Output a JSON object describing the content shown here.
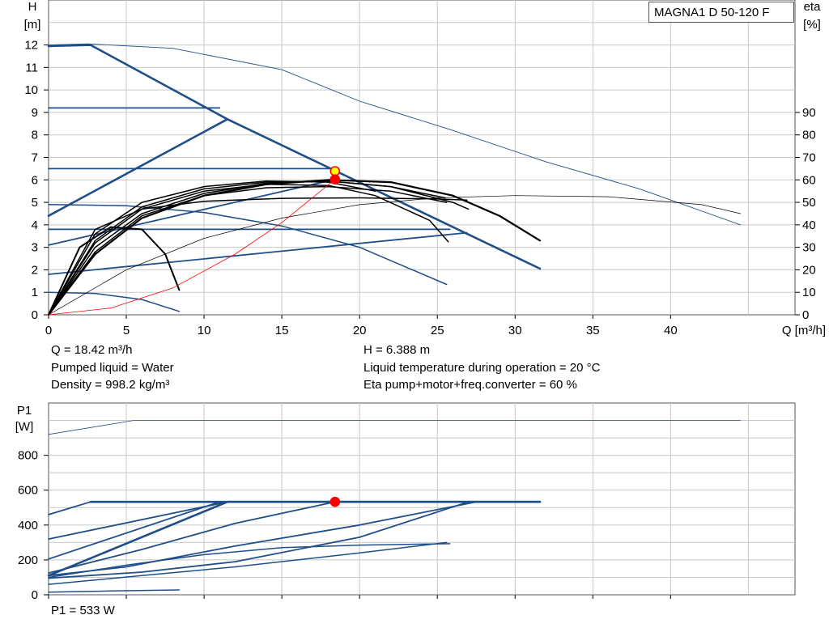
{
  "model": "MAGNA1 D 50-120 F",
  "info": {
    "q": "Q = 18.42 m³/h",
    "h": "H = 6.388 m",
    "liquid": "Pumped liquid = Water",
    "temp": "Liquid temperature during operation = 20 °C",
    "density": "Density = 998.2 kg/m³",
    "eta": "Eta pump+motor+freq.converter = 60 %",
    "p1": "P1 = 533 W"
  },
  "colors": {
    "curve": "#1f4e89",
    "efficiency": "#000000",
    "system": "#ff0000",
    "grid": "#c8c8c8",
    "marker": "#ff0000",
    "marker_alt": "#ffff00"
  },
  "chart_data": [
    {
      "type": "line",
      "title": "",
      "ylabel_top": "H",
      "ylabel_unit": "[m]",
      "y2label_top": "eta",
      "y2label_unit": "[%]",
      "xlabel": "Q [m³/h]",
      "xlim": [
        0,
        48
      ],
      "ylim": [
        0,
        14
      ],
      "y2lim": [
        0,
        140
      ],
      "xticks": [
        0,
        5,
        10,
        15,
        20,
        25,
        30,
        35,
        40
      ],
      "yticks": [
        0,
        1,
        2,
        3,
        4,
        5,
        6,
        7,
        8,
        9,
        10,
        11,
        12
      ],
      "y2ticks": [
        0,
        10,
        20,
        30,
        40,
        50,
        60,
        70,
        80,
        90
      ],
      "grid": true,
      "series": [
        {
          "role": "max",
          "axis": "y",
          "points": [
            [
              0,
              11.95
            ],
            [
              2.7,
              12
            ],
            [
              11.5,
              8.7
            ],
            [
              31.6,
              2.05
            ]
          ],
          "width": 2.6
        },
        {
          "role": "prop-high",
          "axis": "y",
          "points": [
            [
              0,
              4.4
            ],
            [
              11.5,
              8.7
            ]
          ],
          "width": 2.6
        },
        {
          "role": "const-9",
          "axis": "y",
          "points": [
            [
              0,
              9.2
            ],
            [
              11,
              9.2
            ]
          ],
          "width": 1.8
        },
        {
          "role": "const-6.5",
          "axis": "y",
          "points": [
            [
              0,
              6.5
            ],
            [
              18.4,
              6.5
            ]
          ],
          "width": 1.8
        },
        {
          "role": "const-3.8",
          "axis": "y",
          "points": [
            [
              0,
              3.8
            ],
            [
              25.8,
              3.8
            ]
          ],
          "width": 1.8
        },
        {
          "role": "prop-mid",
          "axis": "y",
          "points": [
            [
              0,
              3.1
            ],
            [
              18.4,
              6.02
            ]
          ],
          "width": 1.8
        },
        {
          "role": "prop-low",
          "axis": "y",
          "points": [
            [
              0,
              1.8
            ],
            [
              26.9,
              3.65
            ]
          ],
          "width": 1.8
        },
        {
          "role": "auto-low",
          "axis": "y",
          "points": [
            [
              0,
              4.9
            ],
            [
              5,
              4.85
            ],
            [
              10,
              4.55
            ],
            [
              15,
              3.95
            ],
            [
              20,
              3.0
            ],
            [
              25.6,
              1.35
            ]
          ],
          "width": 1.5
        },
        {
          "role": "min",
          "axis": "y",
          "points": [
            [
              0,
              1.0
            ],
            [
              3,
              0.95
            ],
            [
              6,
              0.68
            ],
            [
              8.4,
              0.15
            ]
          ],
          "width": 1.5
        },
        {
          "role": "eta-main",
          "axis": "y2",
          "points": [
            [
              0,
              120
            ],
            [
              2.5,
              120.5
            ],
            [
              8,
              118.5
            ],
            [
              15,
              109
            ],
            [
              20,
              95
            ],
            [
              26,
              82
            ],
            [
              32,
              68
            ],
            [
              38,
              56
            ],
            [
              44.5,
              40
            ]
          ],
          "width": 0.9
        },
        {
          "role": "eta-curve",
          "axis": "y2",
          "points": [
            [
              0,
              0
            ],
            [
              5,
              20
            ],
            [
              10,
              34
            ],
            [
              15,
              43
            ],
            [
              20,
              49
            ],
            [
              25,
              52
            ],
            [
              30,
              53
            ],
            [
              36,
              52.5
            ],
            [
              42,
              49
            ],
            [
              44.5,
              45
            ]
          ],
          "width": 0.7,
          "color": "efficiency"
        },
        {
          "role": "eta-a",
          "axis": "y2",
          "points": [
            [
              0,
              0
            ],
            [
              3,
              27
            ],
            [
              6,
              43
            ],
            [
              10,
              53
            ],
            [
              14,
              58
            ],
            [
              18,
              60
            ],
            [
              22,
              59
            ],
            [
              26,
              53
            ],
            [
              29,
              44
            ],
            [
              31.6,
              33
            ]
          ],
          "width": 2.2,
          "color": "efficiency"
        },
        {
          "role": "eta-b",
          "axis": "y2",
          "points": [
            [
              0,
              0
            ],
            [
              3,
              30
            ],
            [
              6,
              45
            ],
            [
              10,
              54
            ],
            [
              14,
              58.5
            ],
            [
              18,
              59.5
            ],
            [
              22,
              57
            ],
            [
              26,
              50
            ],
            [
              27,
              47
            ]
          ],
          "width": 1.5,
          "color": "efficiency"
        },
        {
          "role": "eta-c",
          "axis": "y2",
          "points": [
            [
              0,
              0
            ],
            [
              3,
              32
            ],
            [
              6,
              47
            ],
            [
              10,
              55
            ],
            [
              14,
              58
            ],
            [
              18,
              57.5
            ],
            [
              21,
              53
            ],
            [
              24.5,
              42
            ],
            [
              25.7,
              32.5
            ]
          ],
          "width": 1.5,
          "color": "efficiency"
        },
        {
          "role": "eta-d",
          "axis": "y2",
          "points": [
            [
              0,
              0
            ],
            [
              3,
              28
            ],
            [
              6,
              44
            ],
            [
              10,
              53
            ],
            [
              14,
              56.5
            ],
            [
              18,
              57
            ],
            [
              22,
              55
            ],
            [
              25.6,
              50
            ]
          ],
          "width": 1.5,
          "color": "efficiency"
        },
        {
          "role": "eta-e",
          "axis": "y2",
          "points": [
            [
              0,
              0
            ],
            [
              3,
              33
            ],
            [
              6,
              48
            ],
            [
              10,
              56
            ],
            [
              14,
              59
            ],
            [
              18,
              59.5
            ],
            [
              22,
              57
            ],
            [
              25.5,
              52
            ]
          ],
          "width": 1.5,
          "color": "efficiency"
        },
        {
          "role": "eta-f",
          "axis": "y2",
          "points": [
            [
              0,
              0
            ],
            [
              3,
              36
            ],
            [
              6,
              50
            ],
            [
              10,
              57
            ],
            [
              14,
              59.5
            ],
            [
              18,
              59
            ],
            [
              21,
              55
            ]
          ],
          "width": 1.5,
          "color": "efficiency"
        },
        {
          "role": "eta-flat",
          "axis": "y2",
          "points": [
            [
              0,
              0
            ],
            [
              3,
              38
            ],
            [
              6,
              47
            ],
            [
              10,
              50.5
            ],
            [
              15,
              51.8
            ],
            [
              20,
              52
            ],
            [
              25,
              51.5
            ],
            [
              26.9,
              51
            ]
          ],
          "width": 1.5,
          "color": "efficiency"
        },
        {
          "role": "eta-small",
          "axis": "y2",
          "points": [
            [
              0,
              0
            ],
            [
              2,
              30
            ],
            [
              4,
              39
            ],
            [
              6,
              38
            ],
            [
              7.5,
              27
            ],
            [
              8.4,
              11
            ]
          ],
          "width": 2.0,
          "color": "efficiency"
        },
        {
          "role": "system",
          "axis": "y",
          "points": [
            [
              0,
              0
            ],
            [
              4,
              0.3
            ],
            [
              8,
              1.2
            ],
            [
              12,
              2.7
            ],
            [
              15,
              4.1
            ],
            [
              18.42,
              6.02
            ]
          ],
          "width": 0.8,
          "color": "system"
        }
      ],
      "markers": [
        {
          "x": 18.42,
          "y": 6.388,
          "fill": "marker_alt",
          "stroke": "marker"
        },
        {
          "x": 18.42,
          "y": 6.02,
          "fill": "marker",
          "stroke": "marker"
        }
      ]
    },
    {
      "type": "line",
      "title": "",
      "ylabel_top": "P1",
      "ylabel_unit": "[W]",
      "xlim": [
        0,
        48
      ],
      "ylim": [
        0,
        1100
      ],
      "xticks": [
        0,
        5,
        10,
        15,
        20,
        25,
        30,
        35,
        40
      ],
      "yticks": [
        0,
        200,
        400,
        600,
        800
      ],
      "grid": true,
      "series": [
        {
          "role": "p1-max",
          "points": [
            [
              0,
              110
            ],
            [
              11.5,
              533
            ],
            [
              31.6,
              533
            ]
          ],
          "width": 2.6
        },
        {
          "role": "p1-top-h",
          "points": [
            [
              2.7,
              533
            ],
            [
              31.6,
              533
            ]
          ],
          "width": 2.6
        },
        {
          "role": "p1-a",
          "points": [
            [
              0,
              460
            ],
            [
              2.7,
              533
            ]
          ],
          "width": 1.8
        },
        {
          "role": "p1-b",
          "points": [
            [
              0,
              320
            ],
            [
              11.5,
              533
            ]
          ],
          "width": 1.8
        },
        {
          "role": "p1-c",
          "points": [
            [
              0,
              205
            ],
            [
              11,
              533
            ]
          ],
          "width": 1.8
        },
        {
          "role": "p1-d",
          "points": [
            [
              0,
              125
            ],
            [
              6,
              260
            ],
            [
              12,
              410
            ],
            [
              18.42,
              533
            ]
          ],
          "width": 1.8
        },
        {
          "role": "p1-e",
          "points": [
            [
              0,
              110
            ],
            [
              5,
              160
            ],
            [
              12,
              280
            ],
            [
              20,
              400
            ],
            [
              27.5,
              533
            ]
          ],
          "width": 1.8
        },
        {
          "role": "p1-f",
          "points": [
            [
              0,
              95
            ],
            [
              6,
              130
            ],
            [
              12,
              190
            ],
            [
              20,
              330
            ],
            [
              27,
              533
            ]
          ],
          "width": 1.8
        },
        {
          "role": "p1-g",
          "points": [
            [
              0,
              60
            ],
            [
              6,
              110
            ],
            [
              12,
              160
            ],
            [
              20,
              240
            ],
            [
              25.6,
              300
            ]
          ],
          "width": 1.5
        },
        {
          "role": "p1-h",
          "points": [
            [
              0,
              100
            ],
            [
              5,
              170
            ],
            [
              10,
              230
            ],
            [
              15,
              270
            ],
            [
              20,
              285
            ],
            [
              25.8,
              293
            ]
          ],
          "width": 1.5
        },
        {
          "role": "p1-min",
          "points": [
            [
              0,
              15
            ],
            [
              4,
              22
            ],
            [
              8.4,
              28
            ]
          ],
          "width": 1.5
        },
        {
          "role": "p1-thin",
          "points": [
            [
              0,
              920
            ],
            [
              5.5,
              1000
            ],
            [
              44.5,
              1000
            ]
          ],
          "width": 0.8
        }
      ],
      "markers": [
        {
          "x": 18.42,
          "y": 533,
          "fill": "marker",
          "stroke": "marker"
        }
      ]
    }
  ]
}
